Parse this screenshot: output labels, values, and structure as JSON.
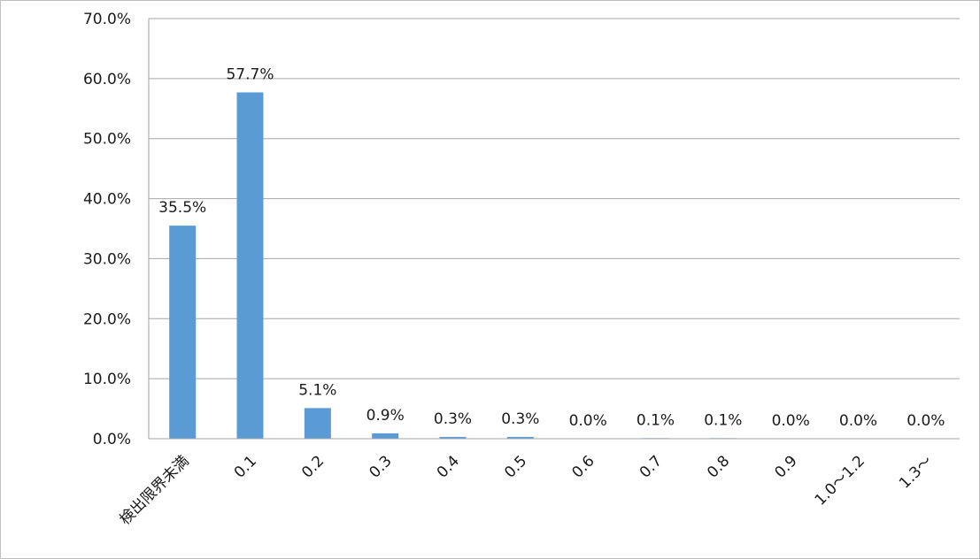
{
  "chart_data": {
    "type": "bar",
    "categories": [
      "検出限界未満",
      "0.1",
      "0.2",
      "0.3",
      "0.4",
      "0.5",
      "0.6",
      "0.7",
      "0.8",
      "0.9",
      "1.0～1.2",
      "1.3～"
    ],
    "values": [
      35.5,
      57.7,
      5.1,
      0.9,
      0.3,
      0.3,
      0.0,
      0.1,
      0.1,
      0.0,
      0.0,
      0.0
    ],
    "data_labels": [
      "35.5%",
      "57.7%",
      "5.1%",
      "0.9%",
      "0.3%",
      "0.3%",
      "0.0%",
      "0.1%",
      "0.1%",
      "0.0%",
      "0.0%",
      "0.0%"
    ],
    "y_ticks": [
      "0.0%",
      "10.0%",
      "20.0%",
      "30.0%",
      "40.0%",
      "50.0%",
      "60.0%",
      "70.0%"
    ],
    "ylim": [
      0,
      70
    ],
    "grid": true,
    "title": "",
    "xlabel": "",
    "ylabel": "",
    "bar_color": "#5b9bd5",
    "grid_color": "#a6a6a6"
  }
}
